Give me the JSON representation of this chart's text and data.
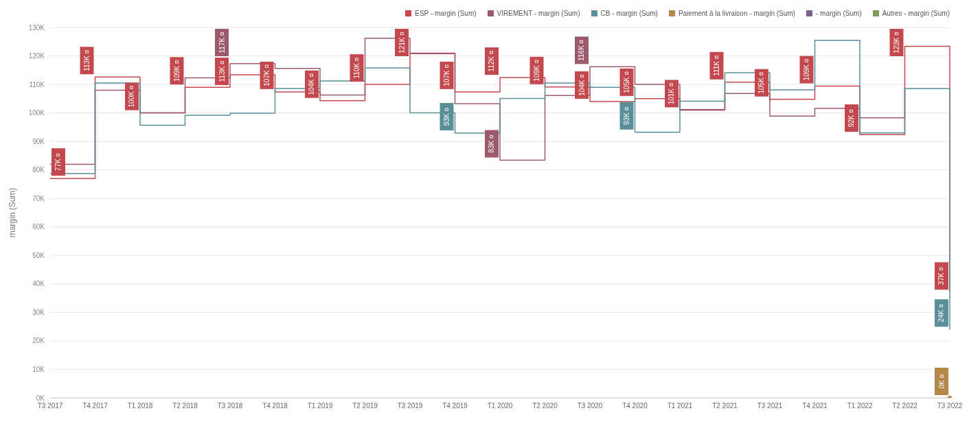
{
  "chart_data": {
    "type": "step",
    "ylabel": "margin (Sum)",
    "categories": [
      "T3 2017",
      "T4 2017",
      "T1 2018",
      "T2 2018",
      "T3 2018",
      "T4 2018",
      "T1 2019",
      "T2 2019",
      "T3 2019",
      "T4 2019",
      "T1 2020",
      "T2 2020",
      "T3 2020",
      "T4 2020",
      "T1 2021",
      "T2 2021",
      "T3 2021",
      "T4 2021",
      "T1 2022",
      "T2 2022",
      "T3 2022"
    ],
    "series": [
      {
        "name": "ESP - margin (Sum)",
        "color": "#c4494f",
        "values": [
          77000,
          112600,
          100000,
          109000,
          113400,
          107400,
          104300,
          110000,
          121000,
          107400,
          112400,
          109100,
          104000,
          105000,
          101000,
          110800,
          104800,
          109400,
          92400,
          123400,
          37000
        ],
        "value_labels": [
          "77K ¤",
          "113K ¤",
          "100K ¤",
          "109K ¤",
          "113K ¤",
          "107K ¤",
          "104K ¤",
          "110K ¤",
          "121K ¤",
          "107K ¤",
          "112K ¤",
          "109K ¤",
          "104K ¤",
          "105K ¤",
          "101K ¤",
          "111K ¤",
          "105K ¤",
          "109K ¤",
          "92K ¤",
          "123K ¤",
          "37K ¤"
        ]
      },
      {
        "name": "VIREMENT - margin (Sum)",
        "color": "#9c5a6c",
        "values": [
          82000,
          108000,
          100000,
          112300,
          117300,
          115600,
          106300,
          126200,
          120800,
          103200,
          83400,
          106100,
          116200,
          110000,
          101200,
          106800,
          98900,
          101600,
          98300,
          108700,
          null
        ],
        "value_labels": [
          null,
          null,
          null,
          null,
          "117K ¤",
          null,
          null,
          null,
          null,
          null,
          "83K ¤",
          null,
          "116K ¤",
          null,
          null,
          null,
          null,
          null,
          null,
          null,
          null
        ]
      },
      {
        "name": "CB - margin (Sum)",
        "color": "#5a8f99",
        "values": [
          78700,
          110500,
          95700,
          99200,
          99900,
          108600,
          111200,
          115800,
          100000,
          92900,
          105100,
          110500,
          109000,
          93200,
          104100,
          114100,
          108100,
          125500,
          93000,
          108600,
          24000
        ],
        "value_labels": [
          null,
          null,
          null,
          null,
          null,
          null,
          null,
          null,
          null,
          "93K ¤",
          null,
          null,
          null,
          "93K ¤",
          null,
          null,
          null,
          null,
          null,
          null,
          "24K ¤"
        ]
      },
      {
        "name": "Paiement à la livraison - margin (Sum)",
        "color": "#b5874a",
        "marker": "circle",
        "values": [
          null,
          null,
          null,
          null,
          null,
          null,
          null,
          null,
          null,
          null,
          null,
          null,
          null,
          null,
          null,
          null,
          null,
          null,
          null,
          null,
          0
        ],
        "value_labels": [
          null,
          null,
          null,
          null,
          null,
          null,
          null,
          null,
          null,
          null,
          null,
          null,
          null,
          null,
          null,
          null,
          null,
          null,
          null,
          null,
          "0K ¤"
        ]
      },
      {
        "name": "- margin (Sum)",
        "color": "#7d5f8f",
        "values": [
          null,
          null,
          null,
          null,
          null,
          null,
          null,
          null,
          null,
          null,
          null,
          null,
          null,
          null,
          null,
          null,
          null,
          null,
          null,
          null,
          null
        ]
      },
      {
        "name": "Autres - margin (Sum)",
        "color": "#7f9a5d",
        "values": [
          null,
          null,
          null,
          null,
          null,
          null,
          null,
          null,
          null,
          null,
          null,
          null,
          null,
          null,
          null,
          null,
          null,
          null,
          null,
          null,
          null
        ]
      }
    ],
    "ylim": [
      0,
      130000
    ],
    "yticks": [
      {
        "value": 0,
        "label": "0K"
      },
      {
        "value": 10000,
        "label": "10K"
      },
      {
        "value": 20000,
        "label": "20K"
      },
      {
        "value": 30000,
        "label": "30K"
      },
      {
        "value": 40000,
        "label": "40K"
      },
      {
        "value": 50000,
        "label": "50K"
      },
      {
        "value": 60000,
        "label": "60K"
      },
      {
        "value": 70000,
        "label": "70K"
      },
      {
        "value": 80000,
        "label": "80K"
      },
      {
        "value": 90000,
        "label": "90K"
      },
      {
        "value": 100000,
        "label": "100K"
      },
      {
        "value": 110000,
        "label": "110K"
      },
      {
        "value": 120000,
        "label": "120K"
      },
      {
        "value": 130000,
        "label": "130K"
      }
    ],
    "grid": "y",
    "legend": "top right"
  }
}
